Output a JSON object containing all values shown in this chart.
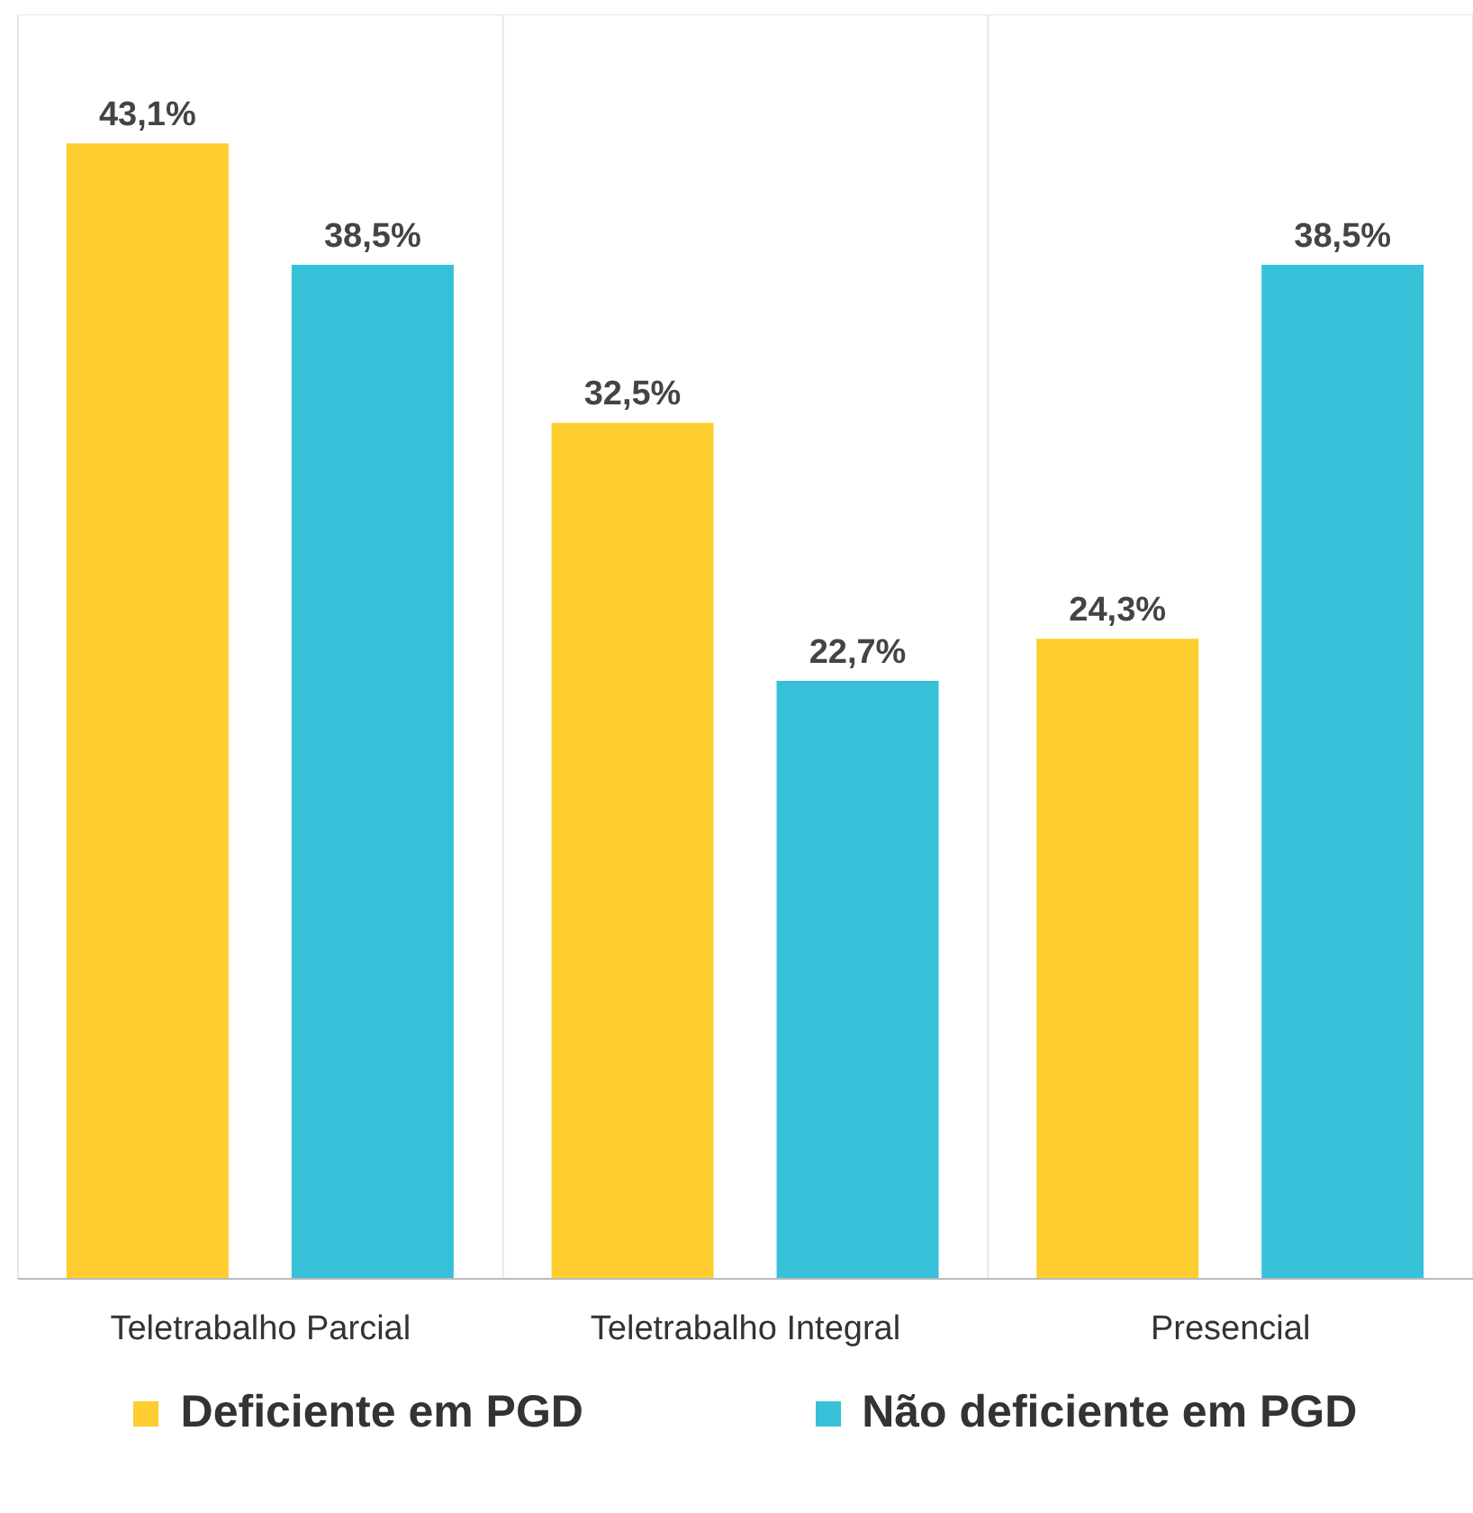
{
  "chart_data": {
    "type": "bar",
    "categories": [
      "Teletrabalho Parcial",
      "Teletrabalho Integral",
      "Presencial"
    ],
    "series": [
      {
        "name": "Deficiente em PGD",
        "color": "#fecd2f",
        "values": [
          43.1,
          32.5,
          24.3
        ],
        "value_labels": [
          "43,1%",
          "32,5%",
          "24,3%"
        ]
      },
      {
        "name": "Não deficiente em PGD",
        "color": "#37c1d8",
        "values": [
          38.5,
          22.7,
          38.5
        ],
        "value_labels": [
          "38,5%",
          "22,7%",
          "38,5%"
        ]
      }
    ],
    "ylim": [
      0,
      48
    ],
    "grid": true,
    "legend": "bottom",
    "tick_labels": "x"
  }
}
